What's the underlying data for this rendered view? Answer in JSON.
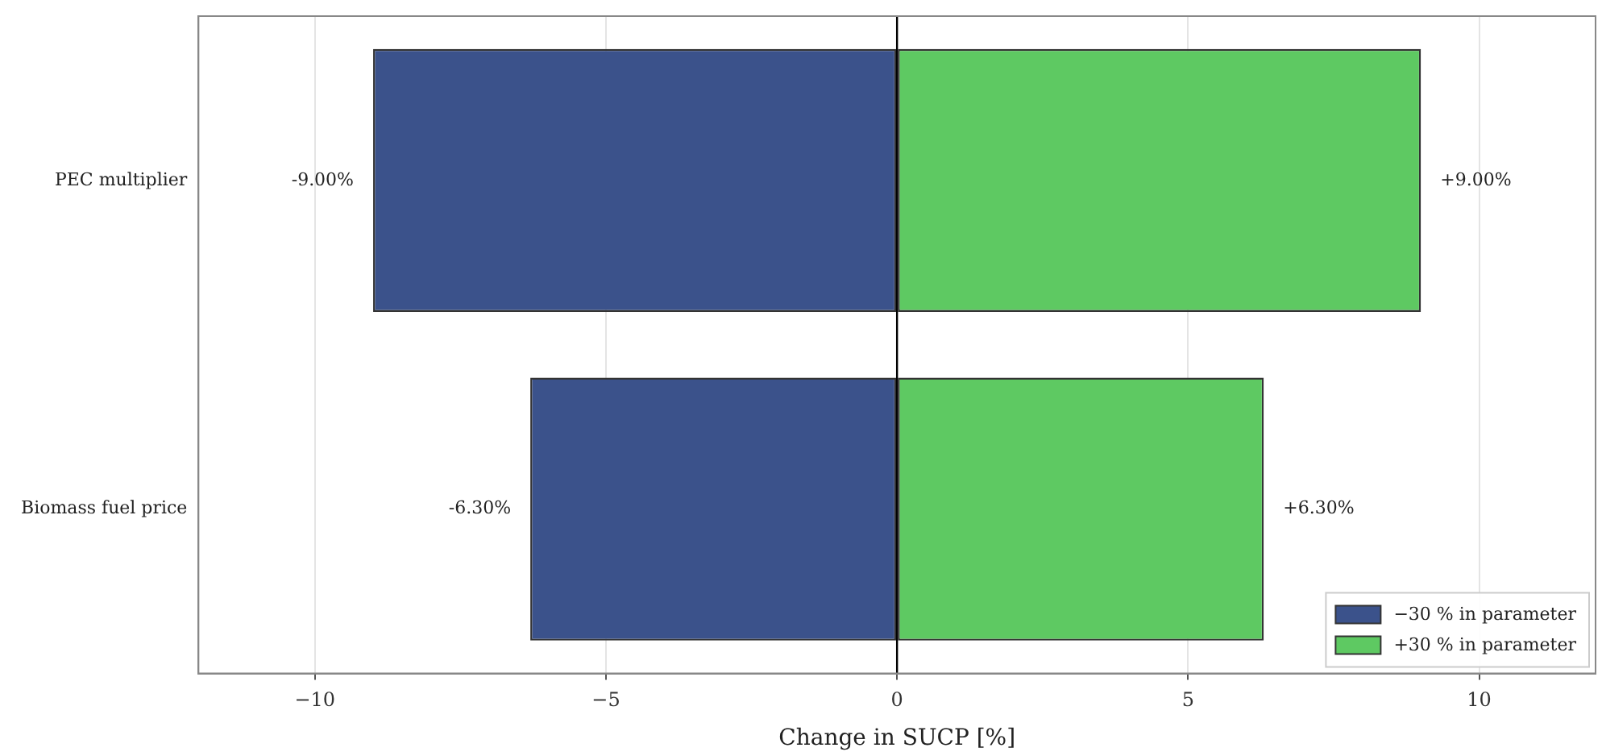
{
  "chart_data": {
    "type": "bar",
    "orientation": "horizontal",
    "stacked": true,
    "categories": [
      "PEC multiplier",
      "Biomass fuel price"
    ],
    "series": [
      {
        "name": "−30 % in parameter",
        "color": "#3b528b",
        "values": [
          -9,
          -6.3
        ],
        "value_labels": [
          "-9.00%",
          "-6.30%"
        ]
      },
      {
        "name": "+30 % in parameter",
        "color": "#5ec962",
        "values": [
          9,
          6.3
        ],
        "value_labels": [
          "+9.00%",
          "+6.30%"
        ]
      }
    ],
    "xlabel": "Change in SUCP [%]",
    "xlim": [
      -12,
      12
    ],
    "xticks": [
      -10,
      -5,
      0,
      5,
      10
    ],
    "grid": "x",
    "legend": "bottom right",
    "ref_lines": [
      {
        "axis": "x",
        "value": 0,
        "color": "#000000"
      }
    ]
  }
}
